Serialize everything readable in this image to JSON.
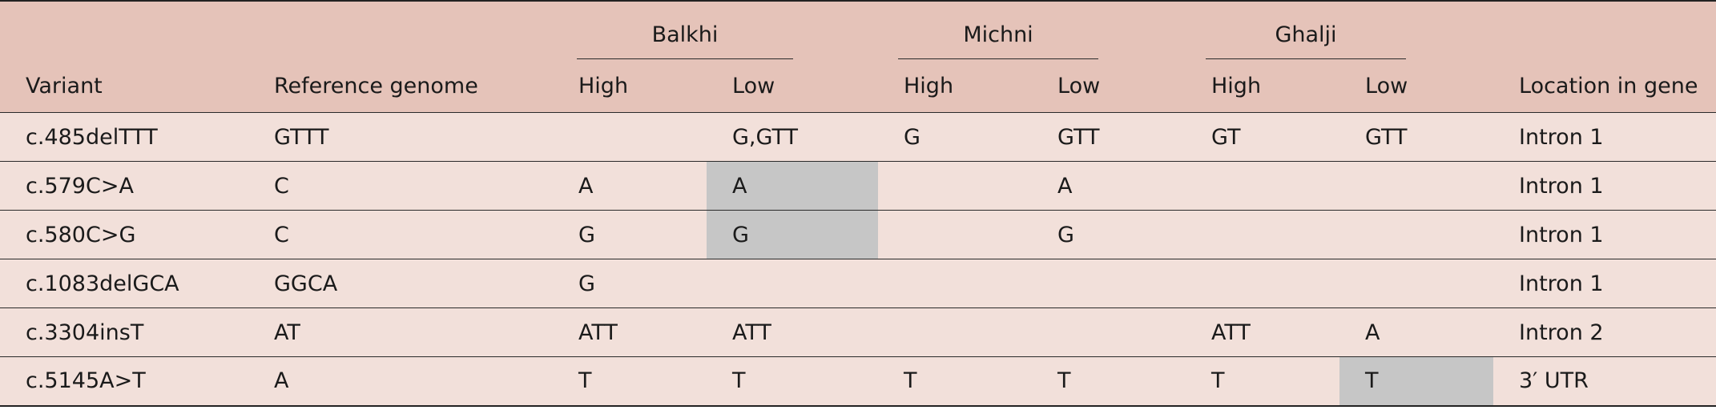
{
  "table": {
    "group_headers": [
      "Balkhi",
      "Michni",
      "Ghalji"
    ],
    "columns": [
      "Variant",
      "Reference genome",
      "High",
      "Low",
      "High",
      "Low",
      "High",
      "Low",
      "Location in gene"
    ],
    "rows": [
      {
        "variant": "c.485delTTT",
        "reference": "GTTT",
        "balkhi_high": "",
        "balkhi_low": "G,GTT",
        "michni_high": "G",
        "michni_low": "GTT",
        "ghalji_high": "GT",
        "ghalji_low": "GTT",
        "location": "Intron 1"
      },
      {
        "variant": "c.579C>A",
        "reference": "C",
        "balkhi_high": "A",
        "balkhi_low": "A",
        "michni_high": "",
        "michni_low": "A",
        "ghalji_high": "",
        "ghalji_low": "",
        "location": "Intron 1"
      },
      {
        "variant": "c.580C>G",
        "reference": "C",
        "balkhi_high": "G",
        "balkhi_low": "G",
        "michni_high": "",
        "michni_low": "G",
        "ghalji_high": "",
        "ghalji_low": "",
        "location": "Intron 1"
      },
      {
        "variant": "c.1083delGCA",
        "reference": "GGCA",
        "balkhi_high": "G",
        "balkhi_low": "",
        "michni_high": "",
        "michni_low": "",
        "ghalji_high": "",
        "ghalji_low": "",
        "location": "Intron 1"
      },
      {
        "variant": "c.3304insT",
        "reference": "AT",
        "balkhi_high": "ATT",
        "balkhi_low": "ATT",
        "michni_high": "",
        "michni_low": "",
        "ghalji_high": "ATT",
        "ghalji_low": "A",
        "location": "Intron 2"
      },
      {
        "variant": "c.5145A>T",
        "reference": "A",
        "balkhi_high": "T",
        "balkhi_low": "T",
        "michni_high": "T",
        "michni_low": "T",
        "ghalji_high": "T",
        "ghalji_low": "T",
        "location": "3′ UTR"
      }
    ],
    "colors": {
      "header_bg": "#e5c3b9",
      "body_bg": "#f2e0da",
      "highlight": "#c6c6c6"
    }
  }
}
